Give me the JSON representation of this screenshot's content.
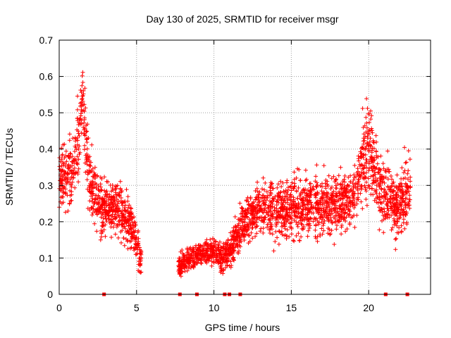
{
  "chart_data": {
    "type": "scatter",
    "title": "Day 130 of 2025, SRMTID for receiver msgr",
    "xlabel": "GPS time / hours",
    "ylabel": "SRMTID / TECUs",
    "xlim": [
      0,
      24
    ],
    "ylim": [
      0,
      0.7
    ],
    "xticks": [
      0,
      5,
      10,
      15,
      20
    ],
    "xtick_labels": [
      "0",
      "5",
      "10",
      "15",
      "20"
    ],
    "yticks": [
      0,
      0.1,
      0.2,
      0.3,
      0.4,
      0.5,
      0.6,
      0.7
    ],
    "ytick_labels": [
      "0",
      "0.1",
      "0.2",
      "0.3",
      "0.4",
      "0.5",
      "0.6",
      "0.7"
    ],
    "grid": true,
    "marker": "+",
    "color": "#ff0000",
    "baseline_markers_x": [
      2.9,
      7.8,
      8.9,
      10.7,
      11.0,
      11.7,
      21.1,
      22.5
    ],
    "trend": [
      [
        0.0,
        0.32,
        0.08
      ],
      [
        0.5,
        0.33,
        0.09
      ],
      [
        1.0,
        0.36,
        0.1
      ],
      [
        1.3,
        0.45,
        0.12
      ],
      [
        1.5,
        0.58,
        0.06
      ],
      [
        1.7,
        0.42,
        0.12
      ],
      [
        2.0,
        0.3,
        0.09
      ],
      [
        2.5,
        0.25,
        0.08
      ],
      [
        3.0,
        0.24,
        0.07
      ],
      [
        3.5,
        0.25,
        0.07
      ],
      [
        4.0,
        0.23,
        0.07
      ],
      [
        4.5,
        0.2,
        0.06
      ],
      [
        4.9,
        0.16,
        0.05
      ],
      [
        5.2,
        0.1,
        0.04
      ],
      [
        7.8,
        0.08,
        0.03
      ],
      [
        8.5,
        0.1,
        0.03
      ],
      [
        9.0,
        0.11,
        0.03
      ],
      [
        9.5,
        0.12,
        0.03
      ],
      [
        10.0,
        0.12,
        0.04
      ],
      [
        10.5,
        0.1,
        0.04
      ],
      [
        11.0,
        0.12,
        0.04
      ],
      [
        11.5,
        0.16,
        0.05
      ],
      [
        12.0,
        0.2,
        0.06
      ],
      [
        13.0,
        0.24,
        0.07
      ],
      [
        14.0,
        0.23,
        0.07
      ],
      [
        15.0,
        0.24,
        0.08
      ],
      [
        16.0,
        0.24,
        0.08
      ],
      [
        17.0,
        0.25,
        0.08
      ],
      [
        18.0,
        0.25,
        0.08
      ],
      [
        19.0,
        0.27,
        0.08
      ],
      [
        19.5,
        0.35,
        0.1
      ],
      [
        20.0,
        0.4,
        0.12
      ],
      [
        20.5,
        0.32,
        0.1
      ],
      [
        21.0,
        0.28,
        0.09
      ],
      [
        21.5,
        0.25,
        0.08
      ],
      [
        22.0,
        0.24,
        0.08
      ],
      [
        22.6,
        0.3,
        0.1
      ]
    ],
    "points_per_gap_segment": 1400
  }
}
